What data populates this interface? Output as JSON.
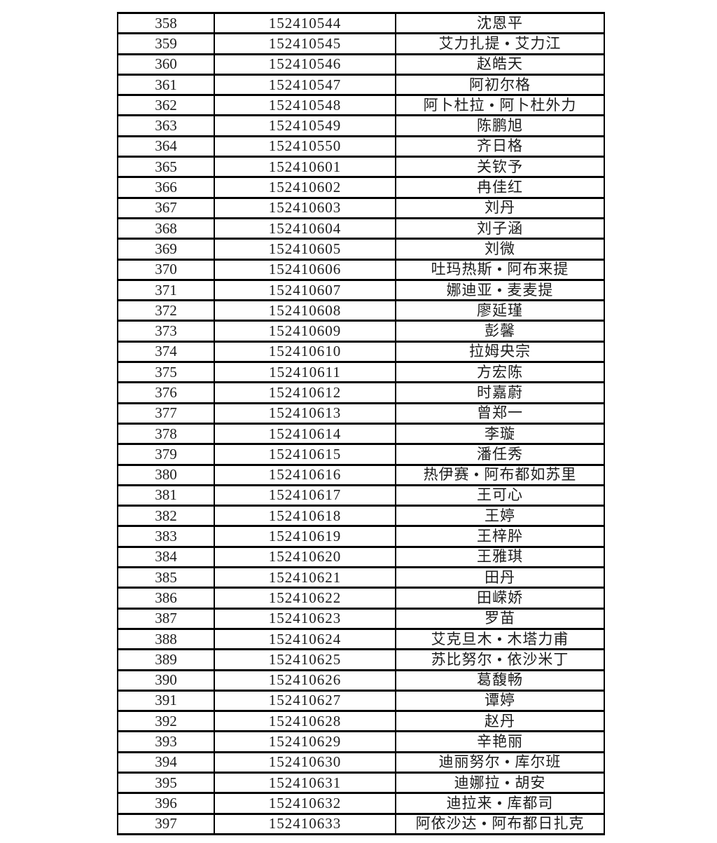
{
  "page": {
    "background_color": "#ffffff",
    "text_color": "#1c1c1c",
    "border_color": "#000000"
  },
  "table": {
    "visible_columns": 3,
    "rows": [
      {
        "seq": "358",
        "id": "152410544",
        "name": "沈恩平"
      },
      {
        "seq": "359",
        "id": "152410545",
        "name": "艾力扎提 • 艾力江"
      },
      {
        "seq": "360",
        "id": "152410546",
        "name": "赵皓天"
      },
      {
        "seq": "361",
        "id": "152410547",
        "name": "阿初尔格"
      },
      {
        "seq": "362",
        "id": "152410548",
        "name": "阿卜杜拉 • 阿卜杜外力"
      },
      {
        "seq": "363",
        "id": "152410549",
        "name": "陈鹏旭"
      },
      {
        "seq": "364",
        "id": "152410550",
        "name": "齐日格"
      },
      {
        "seq": "365",
        "id": "152410601",
        "name": "关钦予"
      },
      {
        "seq": "366",
        "id": "152410602",
        "name": "冉佳红"
      },
      {
        "seq": "367",
        "id": "152410603",
        "name": "刘丹"
      },
      {
        "seq": "368",
        "id": "152410604",
        "name": "刘子涵"
      },
      {
        "seq": "369",
        "id": "152410605",
        "name": "刘微"
      },
      {
        "seq": "370",
        "id": "152410606",
        "name": "吐玛热斯 • 阿布来提"
      },
      {
        "seq": "371",
        "id": "152410607",
        "name": "娜迪亚 • 麦麦提"
      },
      {
        "seq": "372",
        "id": "152410608",
        "name": "廖延瑾"
      },
      {
        "seq": "373",
        "id": "152410609",
        "name": "彭馨"
      },
      {
        "seq": "374",
        "id": "152410610",
        "name": "拉姆央宗"
      },
      {
        "seq": "375",
        "id": "152410611",
        "name": "方宏陈"
      },
      {
        "seq": "376",
        "id": "152410612",
        "name": "时嘉蔚"
      },
      {
        "seq": "377",
        "id": "152410613",
        "name": "曾郑一"
      },
      {
        "seq": "378",
        "id": "152410614",
        "name": "李璇"
      },
      {
        "seq": "379",
        "id": "152410615",
        "name": "潘任秀"
      },
      {
        "seq": "380",
        "id": "152410616",
        "name": "热伊赛 • 阿布都如苏里"
      },
      {
        "seq": "381",
        "id": "152410617",
        "name": "王可心"
      },
      {
        "seq": "382",
        "id": "152410618",
        "name": "王婷"
      },
      {
        "seq": "383",
        "id": "152410619",
        "name": "王梓肸"
      },
      {
        "seq": "384",
        "id": "152410620",
        "name": "王雅琪"
      },
      {
        "seq": "385",
        "id": "152410621",
        "name": "田丹"
      },
      {
        "seq": "386",
        "id": "152410622",
        "name": "田嵘娇"
      },
      {
        "seq": "387",
        "id": "152410623",
        "name": "罗苗"
      },
      {
        "seq": "388",
        "id": "152410624",
        "name": "艾克旦木 • 木塔力甫"
      },
      {
        "seq": "389",
        "id": "152410625",
        "name": "苏比努尔 • 依沙米丁"
      },
      {
        "seq": "390",
        "id": "152410626",
        "name": "葛馥畅"
      },
      {
        "seq": "391",
        "id": "152410627",
        "name": "谭婷"
      },
      {
        "seq": "392",
        "id": "152410628",
        "name": "赵丹"
      },
      {
        "seq": "393",
        "id": "152410629",
        "name": "辛艳丽"
      },
      {
        "seq": "394",
        "id": "152410630",
        "name": "迪丽努尔 • 库尔班"
      },
      {
        "seq": "395",
        "id": "152410631",
        "name": "迪娜拉 • 胡安"
      },
      {
        "seq": "396",
        "id": "152410632",
        "name": "迪拉来 • 库都司"
      },
      {
        "seq": "397",
        "id": "152410633",
        "name": "阿依沙达 • 阿布都日扎克"
      }
    ]
  }
}
